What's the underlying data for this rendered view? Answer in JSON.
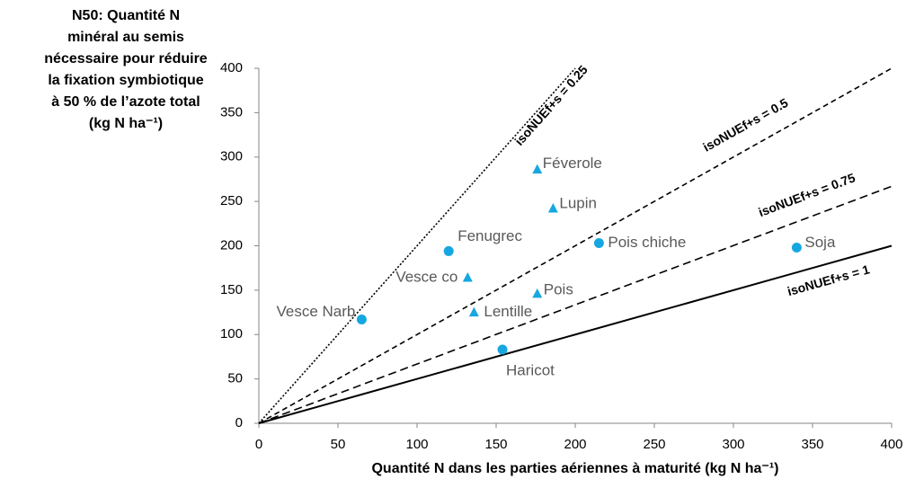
{
  "chart_data": {
    "type": "scatter",
    "x_label": "Quantité N dans les parties aériennes à maturité (kg N ha⁻¹)",
    "y_label": [
      "N50: Quantité N",
      "minéral au semis",
      "nécessaire pour réduire",
      "la fixation symbiotique",
      "à 50 % de l’azote total",
      "(kg N ha⁻¹)"
    ],
    "xlim": [
      0,
      400
    ],
    "xticks": [
      0,
      50,
      100,
      150,
      200,
      250,
      300,
      350,
      400
    ],
    "ylim": [
      0,
      400
    ],
    "yticks": [
      0,
      50,
      100,
      150,
      200,
      250,
      300,
      350,
      400
    ],
    "series": [
      {
        "marker": "circle",
        "color": "#16a7e0",
        "labels": [
          "Vesce Narb",
          "Fenugrec",
          "Haricot",
          "Pois chiche",
          "Soja"
        ],
        "x": [
          65,
          120,
          154,
          215,
          340
        ],
        "values": [
          117,
          194,
          83,
          203,
          198
        ]
      },
      {
        "marker": "triangle",
        "color": "#16a7e0",
        "labels": [
          "Féverole",
          "Lupin",
          "Vesce co",
          "Pois",
          "Lentille"
        ],
        "x": [
          176,
          186,
          132,
          176,
          136
        ],
        "values": [
          286,
          242,
          164,
          146,
          125
        ]
      }
    ],
    "reference_lines": [
      {
        "label": "isoNUEf+s = 0.25",
        "dash": "dotted",
        "x": [
          0,
          200
        ],
        "values": [
          0,
          400
        ]
      },
      {
        "label": "isoNUEf+s = 0.5",
        "dash": "dashed",
        "x": [
          0,
          400
        ],
        "values": [
          0,
          400
        ]
      },
      {
        "label": "isoNUEf+s = 0.75",
        "dash": "longdash",
        "x": [
          0,
          400
        ],
        "values": [
          0,
          267
        ]
      },
      {
        "label": "isoNUEf+s = 1",
        "dash": "solid",
        "x": [
          0,
          400
        ],
        "values": [
          0,
          200
        ]
      }
    ]
  }
}
